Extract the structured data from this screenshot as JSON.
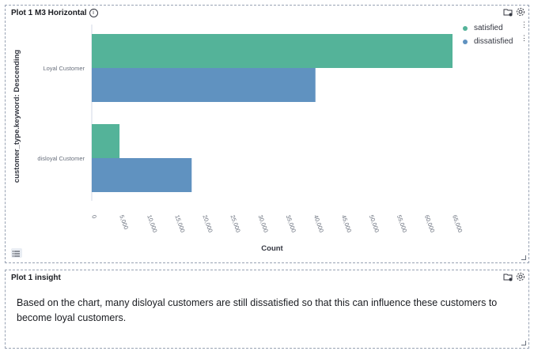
{
  "panels": [
    {
      "title": "Plot 1 M3 Horizontal",
      "icons": [
        "folder-icon",
        "gear-icon",
        "info-icon"
      ]
    },
    {
      "title": "Plot 1 insight",
      "icons": [
        "folder-icon",
        "gear-icon"
      ]
    }
  ],
  "insight": {
    "text": "Based on the chart, many disloyal customers are still dissatisfied so that this can influence these customers to become loyal customers."
  },
  "legend": [
    {
      "label": "satisfied",
      "color": "#54b399"
    },
    {
      "label": "dissatisfied",
      "color": "#6092c0"
    }
  ],
  "chart_data": {
    "type": "bar",
    "orientation": "horizontal",
    "categories": [
      "Loyal Customer",
      "disloyal Customer"
    ],
    "series": [
      {
        "name": "satisfied",
        "color": "#54b399",
        "values": [
          65000,
          5000
        ]
      },
      {
        "name": "dissatisfied",
        "color": "#6092c0",
        "values": [
          40300,
          18000
        ]
      }
    ],
    "xlabel": "Count",
    "ylabel": "customer_type.keyword: Descending",
    "xlim": [
      0,
      65000
    ],
    "xticks": [
      "0",
      "5,000",
      "10,000",
      "15,000",
      "20,000",
      "25,000",
      "30,000",
      "35,000",
      "40,000",
      "45,000",
      "50,000",
      "55,000",
      "60,000",
      "65,000"
    ],
    "grid": false,
    "legend_position": "top-right"
  }
}
